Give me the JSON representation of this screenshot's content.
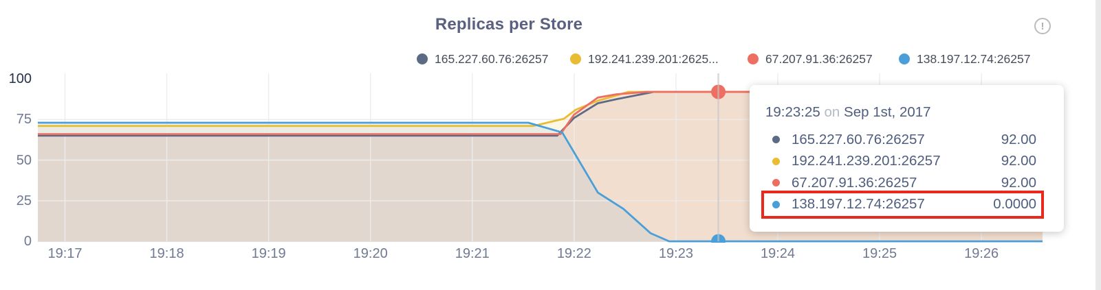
{
  "title": "Replicas per Store",
  "info_icon": "!",
  "accent_colors": {
    "dark_slate": "#5b6a85",
    "yellow": "#e9bc33",
    "red": "#ed6e62",
    "blue": "#4a9fd8",
    "highlight_box": "#e9281e"
  },
  "legend": [
    {
      "label": "165.227.60.76:26257",
      "color": "#5b6a85"
    },
    {
      "label": "192.241.239.201:2625...",
      "color": "#e9bc33"
    },
    {
      "label": "67.207.91.36:26257",
      "color": "#ed6e62"
    },
    {
      "label": "138.197.12.74:26257",
      "color": "#4a9fd8"
    }
  ],
  "tooltip": {
    "time": "19:23:25",
    "conj": "on",
    "date": "Sep 1st, 2017",
    "rows": [
      {
        "label": "165.227.60.76:26257",
        "color": "#5b6a85",
        "value": "92.00"
      },
      {
        "label": "192.241.239.201:26257",
        "color": "#e9bc33",
        "value": "92.00"
      },
      {
        "label": "67.207.91.36:26257",
        "color": "#ed6e62",
        "value": "92.00"
      },
      {
        "label": "138.197.12.74:26257",
        "color": "#4a9fd8",
        "value": "0.0000"
      }
    ],
    "highlight_row": 3
  },
  "chart_data": {
    "type": "area",
    "title": "Replicas per Store",
    "xlabel": "",
    "ylabel": "",
    "ylim": [
      0,
      100
    ],
    "y_ticks": [
      100,
      75,
      50,
      25,
      0
    ],
    "x_ticks": [
      "19:17",
      "19:18",
      "19:19",
      "19:20",
      "19:21",
      "19:22",
      "19:23",
      "19:24",
      "19:25",
      "19:26"
    ],
    "x_domain": [
      "19:16:44",
      "19:26:36"
    ],
    "grid": true,
    "legend_position": "top-right",
    "series": [
      {
        "name": "165.227.60.76:26257",
        "color": "#5b6a85",
        "fill": "#475872",
        "fill_opacity": 0.055,
        "points": [
          [
            "19:16:44",
            65
          ],
          [
            "19:21:50",
            65
          ],
          [
            "19:22:00",
            76
          ],
          [
            "19:22:14",
            85
          ],
          [
            "19:22:25",
            87.5
          ],
          [
            "19:22:47",
            92
          ],
          [
            "19:26:36",
            92
          ]
        ]
      },
      {
        "name": "192.241.239.201:26257",
        "color": "#e9bc33",
        "fill": "#e9bc33",
        "fill_opacity": 0.13,
        "points": [
          [
            "19:16:44",
            71
          ],
          [
            "19:21:36",
            71
          ],
          [
            "19:21:54",
            75.5
          ],
          [
            "19:22:01",
            81
          ],
          [
            "19:22:14",
            86.5
          ],
          [
            "19:22:32",
            92
          ],
          [
            "19:26:36",
            92
          ]
        ]
      },
      {
        "name": "67.207.91.36:26257",
        "color": "#ed6e62",
        "fill": "#ed6e62",
        "fill_opacity": 0.12,
        "points": [
          [
            "19:16:44",
            66
          ],
          [
            "19:21:52",
            66
          ],
          [
            "19:22:00",
            78
          ],
          [
            "19:22:14",
            88.5
          ],
          [
            "19:22:25",
            90.5
          ],
          [
            "19:22:43",
            92
          ],
          [
            "19:26:36",
            92
          ]
        ]
      },
      {
        "name": "138.197.12.74:26257",
        "color": "#4a9fd8",
        "fill": "#4a9fd8",
        "fill_opacity": 0.1,
        "points": [
          [
            "19:16:44",
            73
          ],
          [
            "19:21:33",
            73
          ],
          [
            "19:21:53",
            67
          ],
          [
            "19:22:14",
            30
          ],
          [
            "19:22:29",
            20
          ],
          [
            "19:22:45",
            5
          ],
          [
            "19:22:56",
            0
          ],
          [
            "19:26:36",
            0
          ]
        ]
      }
    ],
    "hover": {
      "time": "19:23:25",
      "line_color": "#c6c6c6",
      "markers": [
        {
          "series": "67.207.91.36:26257",
          "value": 92,
          "color": "#ed6e62"
        },
        {
          "series": "138.197.12.74:26257",
          "value": 0,
          "color": "#4a9fd8"
        }
      ]
    }
  }
}
